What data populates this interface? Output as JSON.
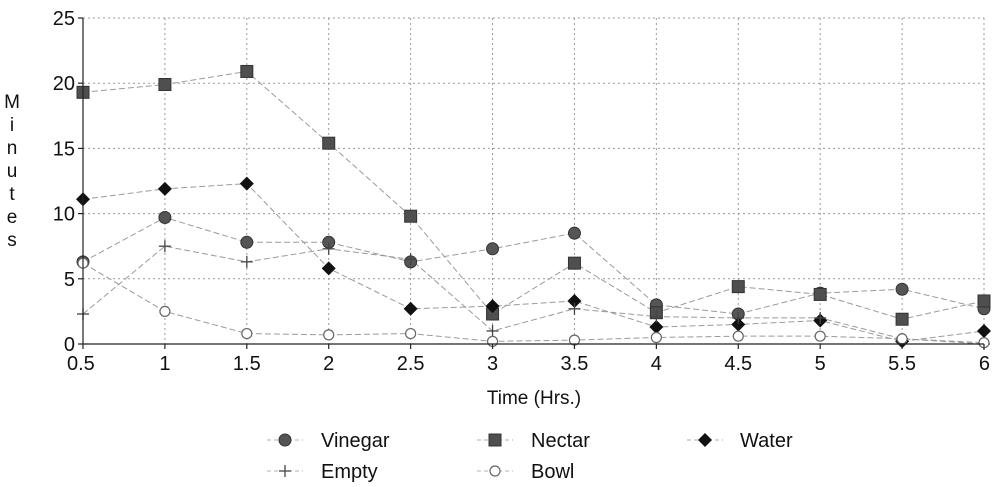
{
  "chart_data": {
    "type": "line",
    "title": "",
    "xlabel": "Time (Hrs.)",
    "ylabel": "Minutes",
    "x": [
      0.5,
      1,
      1.5,
      2,
      2.5,
      3,
      3.5,
      4,
      4.5,
      5,
      5.5,
      6
    ],
    "x_tick_labels": [
      "0.5",
      "1",
      "1.5",
      "2",
      "2.5",
      "3",
      "3.5",
      "4",
      "4.5",
      "5",
      "5.5",
      "6"
    ],
    "y_ticks": [
      0,
      5,
      10,
      15,
      20,
      25
    ],
    "y_tick_labels": [
      "0",
      "5",
      "10",
      "15",
      "20",
      "25"
    ],
    "xlim": [
      0.5,
      6
    ],
    "ylim": [
      0,
      25
    ],
    "grid": true,
    "legend_position": "bottom",
    "series": [
      {
        "name": "Vinegar",
        "marker": "circle",
        "color": "#5a5a5a",
        "values": [
          6.3,
          9.7,
          7.8,
          7.8,
          6.3,
          7.3,
          8.5,
          3.0,
          2.3,
          3.9,
          4.2,
          2.7
        ]
      },
      {
        "name": "Nectar",
        "marker": "square",
        "color": "#5a5a5a",
        "values": [
          19.3,
          19.9,
          20.9,
          15.4,
          9.8,
          2.3,
          6.2,
          2.4,
          4.4,
          3.8,
          1.9,
          3.3
        ]
      },
      {
        "name": "Water",
        "marker": "diamond",
        "color": "#111111",
        "values": [
          11.1,
          11.9,
          12.3,
          5.8,
          2.7,
          2.9,
          3.3,
          1.3,
          1.5,
          1.8,
          0.2,
          1.0
        ]
      },
      {
        "name": "Empty",
        "marker": "plus",
        "color": "#666666",
        "values": [
          2.3,
          7.5,
          6.3,
          7.3,
          6.5,
          1.0,
          2.7,
          2.1,
          2.0,
          2.0,
          0.4,
          0.0
        ]
      },
      {
        "name": "Bowl",
        "marker": "open-circle",
        "color": "#777777",
        "values": [
          6.2,
          2.5,
          0.8,
          0.7,
          0.8,
          0.2,
          0.3,
          0.5,
          0.6,
          0.6,
          0.4,
          0.1
        ]
      }
    ]
  }
}
